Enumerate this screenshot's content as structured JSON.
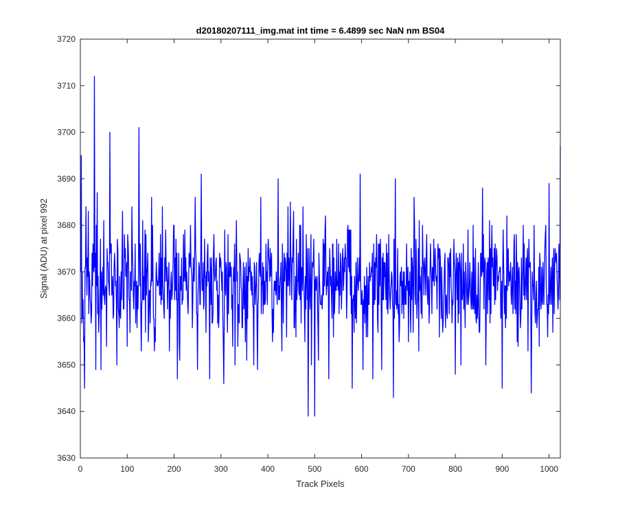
{
  "chart_data": {
    "type": "line",
    "title": "d20180207111_img.mat int time = 6.4899 sec  NaN nm BS04",
    "xlabel": "Track Pixels",
    "ylabel": "Signal (ADU) at pixel 992",
    "xlim": [
      0,
      1024
    ],
    "ylim": [
      3630,
      3720
    ],
    "xticks": [
      0,
      100,
      200,
      300,
      400,
      500,
      600,
      700,
      800,
      900,
      1000
    ],
    "yticks": [
      3630,
      3640,
      3650,
      3660,
      3670,
      3680,
      3690,
      3700,
      3710,
      3720
    ],
    "grid": false,
    "line_color": "#0000ff",
    "series_count": 1,
    "series_points": 1024,
    "anchor_points": [
      [
        1,
        3670
      ],
      [
        2,
        3695
      ],
      [
        5,
        3660
      ],
      [
        7,
        3655
      ],
      [
        9,
        3645
      ],
      [
        12,
        3684
      ],
      [
        14,
        3665
      ],
      [
        17,
        3683
      ],
      [
        20,
        3668
      ],
      [
        23,
        3659
      ],
      [
        27,
        3676
      ],
      [
        30,
        3712
      ],
      [
        33,
        3649
      ],
      [
        36,
        3687
      ],
      [
        40,
        3660
      ],
      [
        44,
        3649
      ],
      [
        50,
        3681
      ],
      [
        56,
        3654
      ],
      [
        63,
        3700
      ],
      [
        70,
        3660
      ],
      [
        78,
        3650
      ],
      [
        90,
        3683
      ],
      [
        100,
        3654
      ],
      [
        110,
        3684
      ],
      [
        118,
        3659
      ],
      [
        125,
        3701
      ],
      [
        130,
        3653
      ],
      [
        140,
        3678
      ],
      [
        152,
        3686
      ],
      [
        160,
        3655
      ],
      [
        175,
        3684
      ],
      [
        190,
        3653
      ],
      [
        200,
        3680
      ],
      [
        207,
        3647
      ],
      [
        212,
        3651
      ],
      [
        220,
        3678
      ],
      [
        235,
        3680
      ],
      [
        245,
        3686
      ],
      [
        250,
        3649
      ],
      [
        258,
        3691
      ],
      [
        268,
        3657
      ],
      [
        276,
        3647
      ],
      [
        285,
        3678
      ],
      [
        293,
        3659
      ],
      [
        300,
        3672
      ],
      [
        306,
        3646
      ],
      [
        315,
        3678
      ],
      [
        330,
        3650
      ],
      [
        345,
        3658
      ],
      [
        355,
        3651
      ],
      [
        370,
        3650
      ],
      [
        378,
        3649
      ],
      [
        385,
        3686
      ],
      [
        395,
        3664
      ],
      [
        410,
        3655
      ],
      [
        422,
        3690
      ],
      [
        430,
        3653
      ],
      [
        440,
        3656
      ],
      [
        448,
        3685
      ],
      [
        455,
        3683
      ],
      [
        460,
        3656
      ],
      [
        468,
        3680
      ],
      [
        475,
        3684
      ],
      [
        486,
        3639
      ],
      [
        493,
        3650
      ],
      [
        500,
        3639
      ],
      [
        508,
        3651
      ],
      [
        520,
        3676
      ],
      [
        530,
        3647
      ],
      [
        540,
        3656
      ],
      [
        550,
        3666
      ],
      [
        558,
        3666
      ],
      [
        565,
        3676
      ],
      [
        580,
        3645
      ],
      [
        590,
        3666
      ],
      [
        597,
        3691
      ],
      [
        603,
        3649
      ],
      [
        610,
        3656
      ],
      [
        618,
        3668
      ],
      [
        624,
        3647
      ],
      [
        635,
        3657
      ],
      [
        643,
        3649
      ],
      [
        658,
        3678
      ],
      [
        668,
        3643
      ],
      [
        672,
        3690
      ],
      [
        680,
        3655
      ],
      [
        690,
        3660
      ],
      [
        700,
        3655
      ],
      [
        712,
        3686
      ],
      [
        722,
        3653
      ],
      [
        730,
        3680
      ],
      [
        740,
        3667
      ],
      [
        750,
        3661
      ],
      [
        760,
        3669
      ],
      [
        770,
        3660
      ],
      [
        783,
        3660
      ],
      [
        790,
        3675
      ],
      [
        800,
        3648
      ],
      [
        812,
        3650
      ],
      [
        820,
        3664
      ],
      [
        830,
        3667
      ],
      [
        845,
        3659
      ],
      [
        852,
        3657
      ],
      [
        858,
        3688
      ],
      [
        865,
        3650
      ],
      [
        875,
        3675
      ],
      [
        890,
        3666
      ],
      [
        900,
        3645
      ],
      [
        910,
        3682
      ],
      [
        920,
        3663
      ],
      [
        930,
        3678
      ],
      [
        945,
        3680
      ],
      [
        955,
        3653
      ],
      [
        962,
        3644
      ],
      [
        968,
        3680
      ],
      [
        975,
        3660
      ],
      [
        985,
        3664
      ],
      [
        992,
        3678
      ],
      [
        1000,
        3689
      ],
      [
        1008,
        3657
      ],
      [
        1015,
        3672
      ],
      [
        1020,
        3665
      ],
      [
        1024,
        3697
      ]
    ]
  }
}
